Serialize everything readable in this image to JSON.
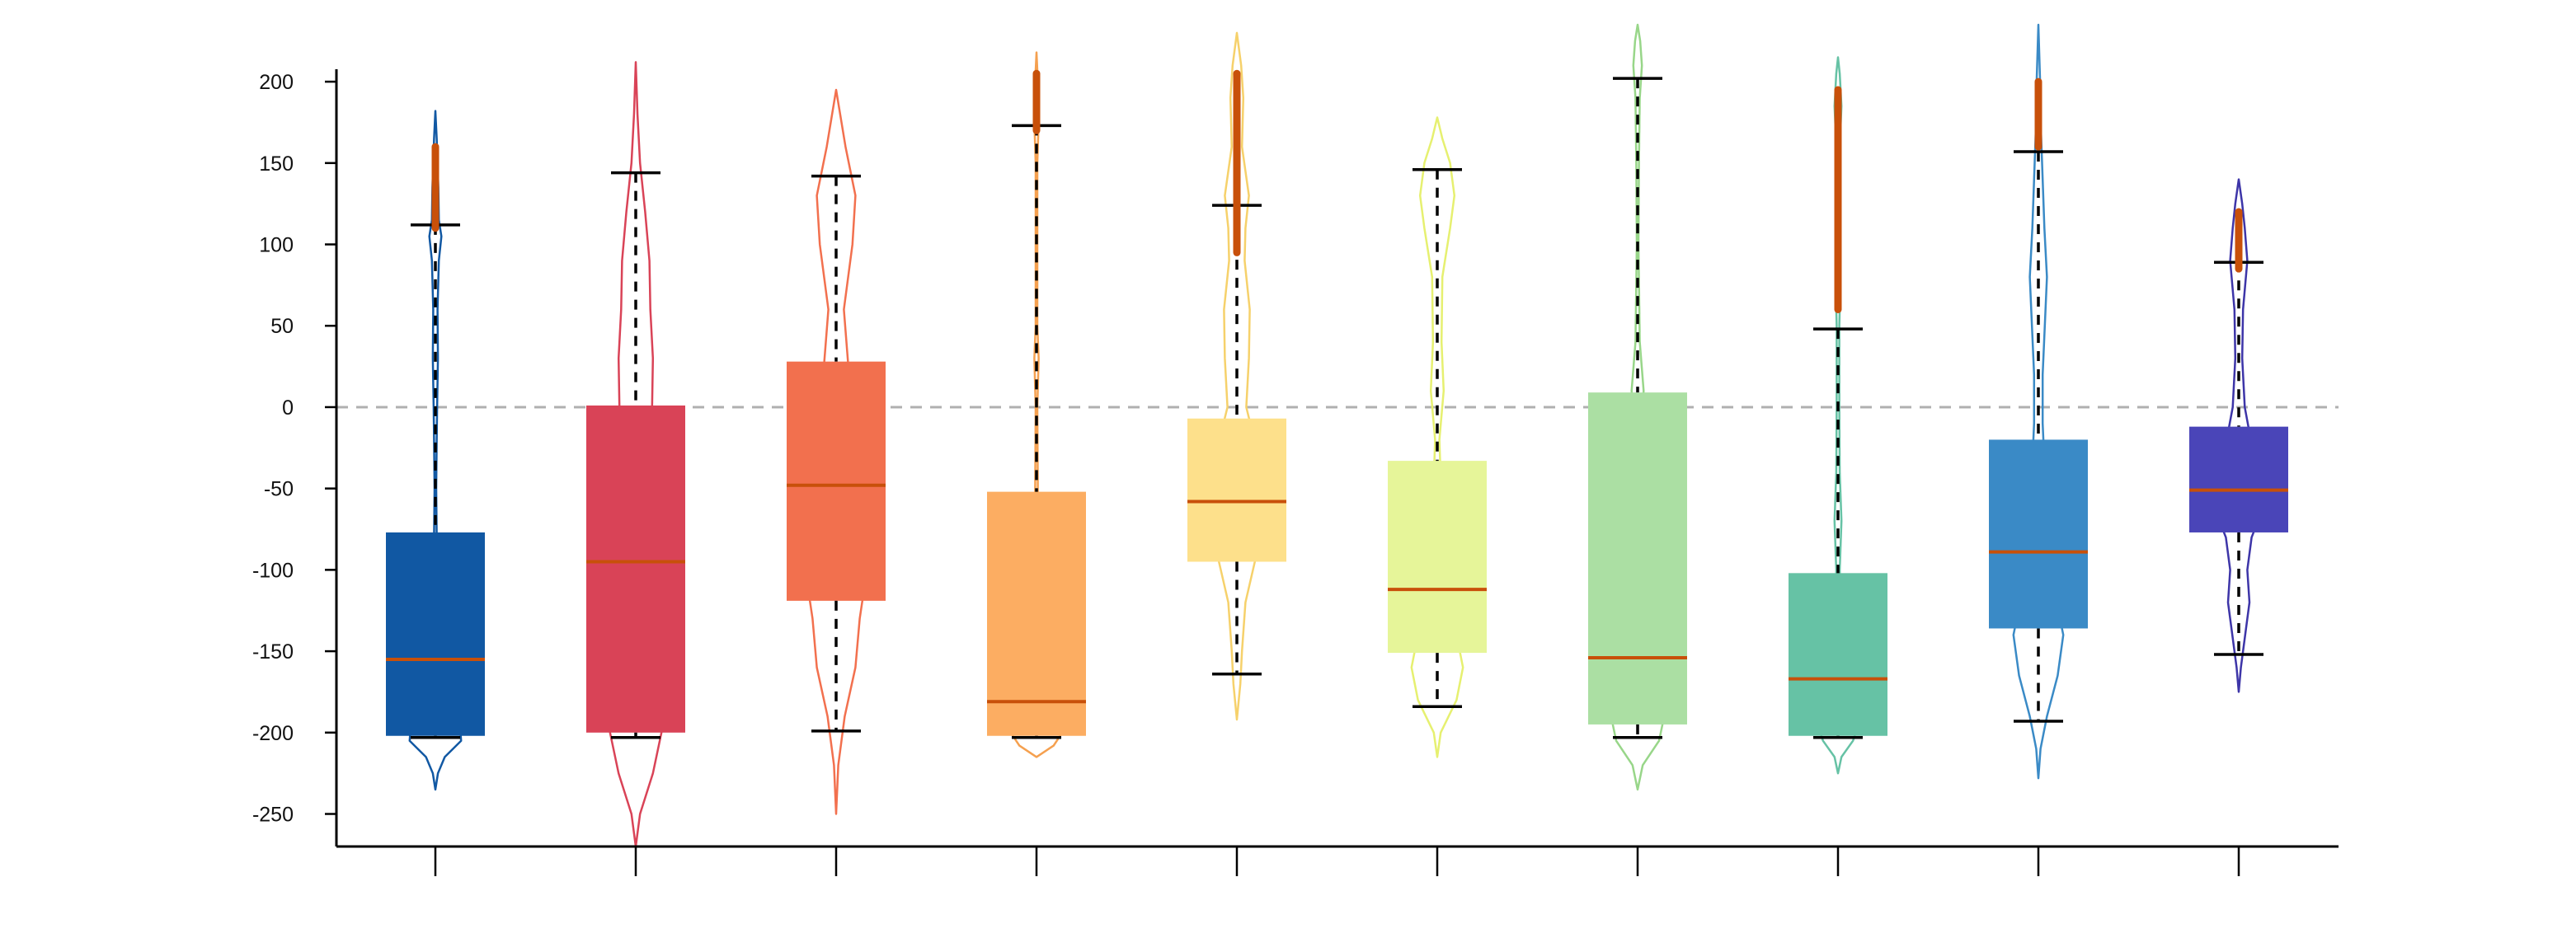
{
  "chart_data": {
    "type": "boxplot",
    "title": "",
    "xlabel": "",
    "ylabel": "",
    "ylim": [
      -270,
      235
    ],
    "yticks": [
      -250,
      -200,
      -150,
      -100,
      -50,
      0,
      50,
      100,
      150,
      200
    ],
    "ytick_labels": [
      "-250",
      "-200",
      "-150",
      "-100",
      "-50",
      "0",
      "50",
      "100",
      "150",
      "200"
    ],
    "reference_line": {
      "y": 0,
      "style": "dashed",
      "color": "#b0b0b0"
    },
    "median_color": "#c8500a",
    "whisker_color": "#000000",
    "groups": [
      {
        "color": "#1158a3",
        "violin_color": "#1158a3",
        "box_alpha": 1.0,
        "q1": -202,
        "median": -155,
        "q3": -77,
        "whisker_low": -203,
        "whisker_high": 112,
        "violin": {
          "min": -235,
          "max": 182,
          "profile": [
            [
              -235,
              0
            ],
            [
              -225,
              0.06
            ],
            [
              -215,
              0.22
            ],
            [
              -205,
              0.6
            ],
            [
              -198,
              0.58
            ],
            [
              -190,
              0.2
            ],
            [
              -180,
              0.05
            ],
            [
              -160,
              0.04
            ],
            [
              -130,
              0.02
            ],
            [
              -110,
              0.04
            ],
            [
              -80,
              0.03
            ],
            [
              -50,
              0.02
            ],
            [
              -20,
              0.03
            ],
            [
              0,
              0.04
            ],
            [
              30,
              0.06
            ],
            [
              60,
              0.05
            ],
            [
              90,
              0.08
            ],
            [
              105,
              0.14
            ],
            [
              115,
              0.08
            ],
            [
              135,
              0.07
            ],
            [
              150,
              0.05
            ],
            [
              165,
              0.03
            ],
            [
              182,
              0
            ]
          ]
        },
        "outlier_range": [
          110,
          160
        ]
      },
      {
        "color": "#d94357",
        "violin_color": "#d94357",
        "box_alpha": 1.0,
        "q1": -200,
        "median": -95,
        "q3": 1,
        "whisker_low": -203,
        "whisker_high": 144,
        "violin": {
          "min": -270,
          "max": 212,
          "profile": [
            [
              -270,
              0
            ],
            [
              -250,
              0.1
            ],
            [
              -225,
              0.4
            ],
            [
              -200,
              0.6
            ],
            [
              -170,
              0.5
            ],
            [
              -140,
              0.32
            ],
            [
              -100,
              0.22
            ],
            [
              -60,
              0.25
            ],
            [
              -20,
              0.35
            ],
            [
              0,
              0.38
            ],
            [
              30,
              0.4
            ],
            [
              60,
              0.34
            ],
            [
              90,
              0.32
            ],
            [
              120,
              0.22
            ],
            [
              150,
              0.1
            ],
            [
              180,
              0.04
            ],
            [
              212,
              0
            ]
          ]
        }
      },
      {
        "color": "#f2704e",
        "violin_color": "#f2704e",
        "box_alpha": 1.0,
        "q1": -119,
        "median": -48,
        "q3": 28,
        "whisker_low": -199,
        "whisker_high": 142,
        "violin": {
          "min": -250,
          "max": 195,
          "profile": [
            [
              -250,
              0
            ],
            [
              -220,
              0.05
            ],
            [
              -190,
              0.2
            ],
            [
              -160,
              0.45
            ],
            [
              -130,
              0.55
            ],
            [
              -100,
              0.72
            ],
            [
              -60,
              1.0
            ],
            [
              -40,
              0.98
            ],
            [
              -10,
              0.6
            ],
            [
              20,
              0.3
            ],
            [
              60,
              0.18
            ],
            [
              100,
              0.38
            ],
            [
              130,
              0.45
            ],
            [
              160,
              0.22
            ],
            [
              195,
              0
            ]
          ]
        }
      },
      {
        "color": "#fcad62",
        "violin_color": "#f5a04f",
        "box_alpha": 1.0,
        "q1": -202,
        "median": -181,
        "q3": -52,
        "whisker_low": -203,
        "whisker_high": 173,
        "violin": {
          "min": -215,
          "max": 218,
          "profile": [
            [
              -215,
              0
            ],
            [
              -208,
              0.4
            ],
            [
              -200,
              0.6
            ],
            [
              -190,
              0.12
            ],
            [
              -150,
              0.02
            ],
            [
              -100,
              0.02
            ],
            [
              -50,
              0.03
            ],
            [
              0,
              0.02
            ],
            [
              30,
              0.05
            ],
            [
              50,
              0.02
            ],
            [
              100,
              0.02
            ],
            [
              150,
              0.02
            ],
            [
              175,
              0.05
            ],
            [
              195,
              0.04
            ],
            [
              218,
              0
            ]
          ]
        },
        "outlier_range": [
          170,
          205
        ]
      },
      {
        "color": "#fde08b",
        "violin_color": "#f6d16b",
        "box_alpha": 1.0,
        "q1": -95,
        "median": -58,
        "q3": -7,
        "whisker_low": -164,
        "whisker_high": 124,
        "violin": {
          "min": -192,
          "max": 230,
          "profile": [
            [
              -192,
              0
            ],
            [
              -170,
              0.08
            ],
            [
              -150,
              0.12
            ],
            [
              -120,
              0.2
            ],
            [
              -80,
              0.55
            ],
            [
              -55,
              0.72
            ],
            [
              -30,
              0.5
            ],
            [
              0,
              0.22
            ],
            [
              30,
              0.28
            ],
            [
              60,
              0.3
            ],
            [
              90,
              0.18
            ],
            [
              110,
              0.2
            ],
            [
              130,
              0.28
            ],
            [
              160,
              0.12
            ],
            [
              190,
              0.15
            ],
            [
              210,
              0.1
            ],
            [
              230,
              0
            ]
          ]
        },
        "outlier_range": [
          95,
          205
        ]
      },
      {
        "color": "#e6f599",
        "violin_color": "#e6f070",
        "box_alpha": 1.0,
        "q1": -151,
        "median": -112,
        "q3": -33,
        "whisker_low": -184,
        "whisker_high": 146,
        "violin": {
          "min": -215,
          "max": 178,
          "profile": [
            [
              -215,
              0
            ],
            [
              -200,
              0.08
            ],
            [
              -180,
              0.45
            ],
            [
              -160,
              0.6
            ],
            [
              -140,
              0.45
            ],
            [
              -120,
              0.3
            ],
            [
              -90,
              0.22
            ],
            [
              -60,
              0.1
            ],
            [
              -20,
              0.05
            ],
            [
              10,
              0.15
            ],
            [
              40,
              0.1
            ],
            [
              80,
              0.12
            ],
            [
              110,
              0.3
            ],
            [
              130,
              0.4
            ],
            [
              150,
              0.3
            ],
            [
              165,
              0.12
            ],
            [
              178,
              0
            ]
          ]
        }
      },
      {
        "color": "#abdfa3",
        "violin_color": "#98d689",
        "box_alpha": 1.0,
        "q1": -195,
        "median": -154,
        "q3": 9,
        "whisker_low": -203,
        "whisker_high": 202,
        "violin": {
          "min": -235,
          "max": 235,
          "profile": [
            [
              -235,
              0
            ],
            [
              -220,
              0.12
            ],
            [
              -205,
              0.5
            ],
            [
              -190,
              0.62
            ],
            [
              -170,
              0.3
            ],
            [
              -140,
              0.18
            ],
            [
              -100,
              0.12
            ],
            [
              -60,
              0.08
            ],
            [
              -20,
              0.06
            ],
            [
              10,
              0.14
            ],
            [
              40,
              0.05
            ],
            [
              100,
              0.02
            ],
            [
              150,
              0.03
            ],
            [
              190,
              0.05
            ],
            [
              210,
              0.1
            ],
            [
              225,
              0.06
            ],
            [
              235,
              0
            ]
          ]
        }
      },
      {
        "color": "#66c2a5",
        "violin_color": "#66c2a5",
        "box_alpha": 1.0,
        "q1": -202,
        "median": -167,
        "q3": -102,
        "whisker_low": -203,
        "whisker_high": 48,
        "violin": {
          "min": -225,
          "max": 215,
          "profile": [
            [
              -225,
              0
            ],
            [
              -215,
              0.08
            ],
            [
              -205,
              0.35
            ],
            [
              -195,
              0.48
            ],
            [
              -175,
              0.22
            ],
            [
              -140,
              0.06
            ],
            [
              -100,
              0.04
            ],
            [
              -70,
              0.08
            ],
            [
              -40,
              0.04
            ],
            [
              0,
              0.03
            ],
            [
              50,
              0.03
            ],
            [
              80,
              0.06
            ],
            [
              100,
              0.04
            ],
            [
              130,
              0.05
            ],
            [
              160,
              0.04
            ],
            [
              185,
              0.08
            ],
            [
              205,
              0.04
            ],
            [
              215,
              0
            ]
          ]
        },
        "outlier_range": [
          60,
          195
        ]
      },
      {
        "color": "#3a8ac6",
        "violin_color": "#3a8ac6",
        "box_alpha": 1.0,
        "q1": -136,
        "median": -89,
        "q3": -20,
        "whisker_low": -193,
        "whisker_high": 157,
        "violin": {
          "min": -228,
          "max": 235,
          "profile": [
            [
              -228,
              0
            ],
            [
              -210,
              0.05
            ],
            [
              -190,
              0.2
            ],
            [
              -165,
              0.45
            ],
            [
              -140,
              0.58
            ],
            [
              -110,
              0.35
            ],
            [
              -80,
              0.2
            ],
            [
              -40,
              0.15
            ],
            [
              -10,
              0.1
            ],
            [
              20,
              0.1
            ],
            [
              50,
              0.15
            ],
            [
              80,
              0.2
            ],
            [
              110,
              0.14
            ],
            [
              140,
              0.1
            ],
            [
              170,
              0.06
            ],
            [
              200,
              0.04
            ],
            [
              235,
              0
            ]
          ]
        },
        "outlier_range": [
          160,
          200
        ]
      },
      {
        "color": "#4a45b8",
        "violin_color": "#3d35a8",
        "box_alpha": 1.0,
        "q1": -77,
        "median": -51,
        "q3": -12,
        "whisker_low": -152,
        "whisker_high": 89,
        "violin": {
          "min": -175,
          "max": 140,
          "profile": [
            [
              -175,
              0
            ],
            [
              -160,
              0.05
            ],
            [
              -140,
              0.15
            ],
            [
              -120,
              0.25
            ],
            [
              -100,
              0.2
            ],
            [
              -80,
              0.3
            ],
            [
              -60,
              0.6
            ],
            [
              -40,
              0.42
            ],
            [
              -20,
              0.28
            ],
            [
              0,
              0.14
            ],
            [
              30,
              0.08
            ],
            [
              60,
              0.1
            ],
            [
              90,
              0.2
            ],
            [
              110,
              0.14
            ],
            [
              125,
              0.08
            ],
            [
              140,
              0
            ]
          ]
        },
        "outlier_range": [
          85,
          120
        ]
      }
    ]
  }
}
